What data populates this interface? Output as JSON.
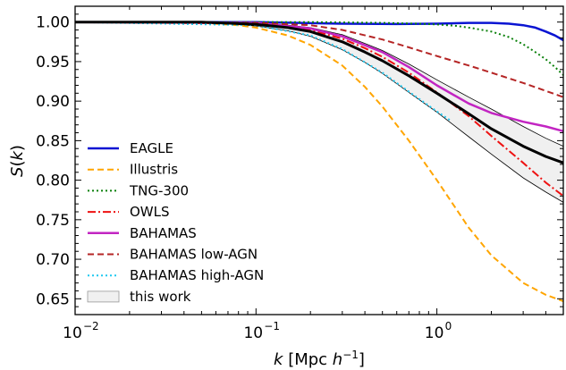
{
  "chart_data": {
    "type": "line",
    "title": "",
    "xlabel": "k [Mpc h^-1]",
    "ylabel": "S(k)",
    "xscale": "log",
    "xlim": [
      0.01,
      5.0
    ],
    "ylim": [
      0.63,
      1.02
    ],
    "grid": false,
    "legend_position": "lower-left",
    "x_ticks": [
      {
        "value": 0.01,
        "base": "10",
        "exp": "−2"
      },
      {
        "value": 0.1,
        "base": "10",
        "exp": "−1"
      },
      {
        "value": 1.0,
        "base": "10",
        "exp": "0"
      }
    ],
    "y_ticks": [
      "0.65",
      "0.70",
      "0.75",
      "0.80",
      "0.85",
      "0.90",
      "0.95",
      "1.00"
    ],
    "series": [
      {
        "name": "EAGLE",
        "color": "#0a14d2",
        "style": "solid",
        "width": 2.5,
        "x": [
          0.01,
          0.1,
          0.3,
          0.6,
          1.0,
          1.5,
          2.0,
          2.5,
          3.0,
          3.5,
          4.0,
          4.5,
          5.0
        ],
        "y": [
          1.0,
          1.0,
          0.998,
          0.9975,
          0.998,
          0.999,
          0.999,
          0.998,
          0.996,
          0.993,
          0.988,
          0.983,
          0.977
        ]
      },
      {
        "name": "Illustris",
        "color": "#ffa500",
        "style": "dashed",
        "width": 2,
        "x": [
          0.01,
          0.05,
          0.08,
          0.1,
          0.15,
          0.2,
          0.3,
          0.4,
          0.5,
          0.7,
          1.0,
          1.5,
          2.0,
          3.0,
          4.0,
          5.0
        ],
        "y": [
          1.0,
          0.999,
          0.996,
          0.993,
          0.983,
          0.971,
          0.945,
          0.918,
          0.893,
          0.85,
          0.8,
          0.74,
          0.705,
          0.67,
          0.655,
          0.647
        ]
      },
      {
        "name": "TNG-300",
        "color": "#0a800a",
        "style": "dotted",
        "width": 2,
        "x": [
          0.01,
          0.2,
          0.5,
          0.8,
          1.0,
          1.3,
          1.6,
          2.0,
          2.5,
          3.0,
          3.5,
          4.0,
          4.5,
          5.0
        ],
        "y": [
          1.0,
          1.0,
          0.999,
          0.998,
          0.997,
          0.995,
          0.992,
          0.988,
          0.981,
          0.972,
          0.962,
          0.953,
          0.943,
          0.933
        ]
      },
      {
        "name": "OWLS",
        "color": "#ee1111",
        "style": "dashdot",
        "width": 2,
        "x": [
          0.01,
          0.1,
          0.2,
          0.3,
          0.4,
          0.5,
          0.7,
          1.0,
          1.5,
          2.0,
          3.0,
          4.0,
          5.0
        ],
        "y": [
          1.0,
          0.998,
          0.99,
          0.979,
          0.967,
          0.956,
          0.936,
          0.911,
          0.881,
          0.856,
          0.822,
          0.797,
          0.78
        ]
      },
      {
        "name": "BAHAMAS",
        "color": "#c225c2",
        "style": "solid",
        "width": 2.5,
        "x": [
          0.01,
          0.1,
          0.2,
          0.3,
          0.5,
          0.7,
          1.0,
          1.5,
          2.0,
          3.0,
          4.0,
          5.0
        ],
        "y": [
          1.0,
          0.999,
          0.992,
          0.982,
          0.962,
          0.943,
          0.92,
          0.897,
          0.885,
          0.874,
          0.868,
          0.862
        ]
      },
      {
        "name": "BAHAMAS low-AGN",
        "color": "#b52525",
        "style": "dashed",
        "width": 2,
        "x": [
          0.01,
          0.1,
          0.2,
          0.3,
          0.5,
          0.7,
          1.0,
          1.5,
          2.0,
          3.0,
          4.0,
          5.0
        ],
        "y": [
          1.0,
          0.999,
          0.996,
          0.99,
          0.978,
          0.968,
          0.957,
          0.945,
          0.936,
          0.923,
          0.913,
          0.905
        ]
      },
      {
        "name": "BAHAMAS high-AGN",
        "color": "#1ec8f0",
        "style": "dotted",
        "width": 2,
        "x": [
          0.01,
          0.1,
          0.2,
          0.3,
          0.5,
          0.7,
          1.0,
          1.2
        ],
        "y": [
          1.0,
          0.996,
          0.983,
          0.966,
          0.936,
          0.912,
          0.887,
          0.875
        ]
      },
      {
        "name": "this work (mean)",
        "color": "#000000",
        "style": "solid",
        "width": 3,
        "x": [
          0.01,
          0.05,
          0.1,
          0.15,
          0.2,
          0.3,
          0.4,
          0.5,
          0.7,
          1.0,
          1.5,
          2.0,
          3.0,
          4.0,
          5.0
        ],
        "y": [
          1.0,
          1.0,
          0.997,
          0.993,
          0.988,
          0.975,
          0.962,
          0.951,
          0.932,
          0.91,
          0.884,
          0.865,
          0.843,
          0.83,
          0.822
        ]
      }
    ],
    "band": {
      "name": "this work",
      "fill": "#f0f0f0",
      "x": [
        0.01,
        0.05,
        0.1,
        0.15,
        0.2,
        0.3,
        0.4,
        0.5,
        0.7,
        1.0,
        1.5,
        2.0,
        3.0,
        4.0,
        5.0
      ],
      "upper": [
        1.0,
        1.0,
        0.998,
        0.996,
        0.993,
        0.984,
        0.973,
        0.964,
        0.947,
        0.927,
        0.905,
        0.89,
        0.868,
        0.853,
        0.843
      ],
      "lower": [
        1.0,
        1.0,
        0.995,
        0.989,
        0.982,
        0.965,
        0.949,
        0.935,
        0.911,
        0.886,
        0.855,
        0.833,
        0.803,
        0.785,
        0.772
      ]
    }
  }
}
